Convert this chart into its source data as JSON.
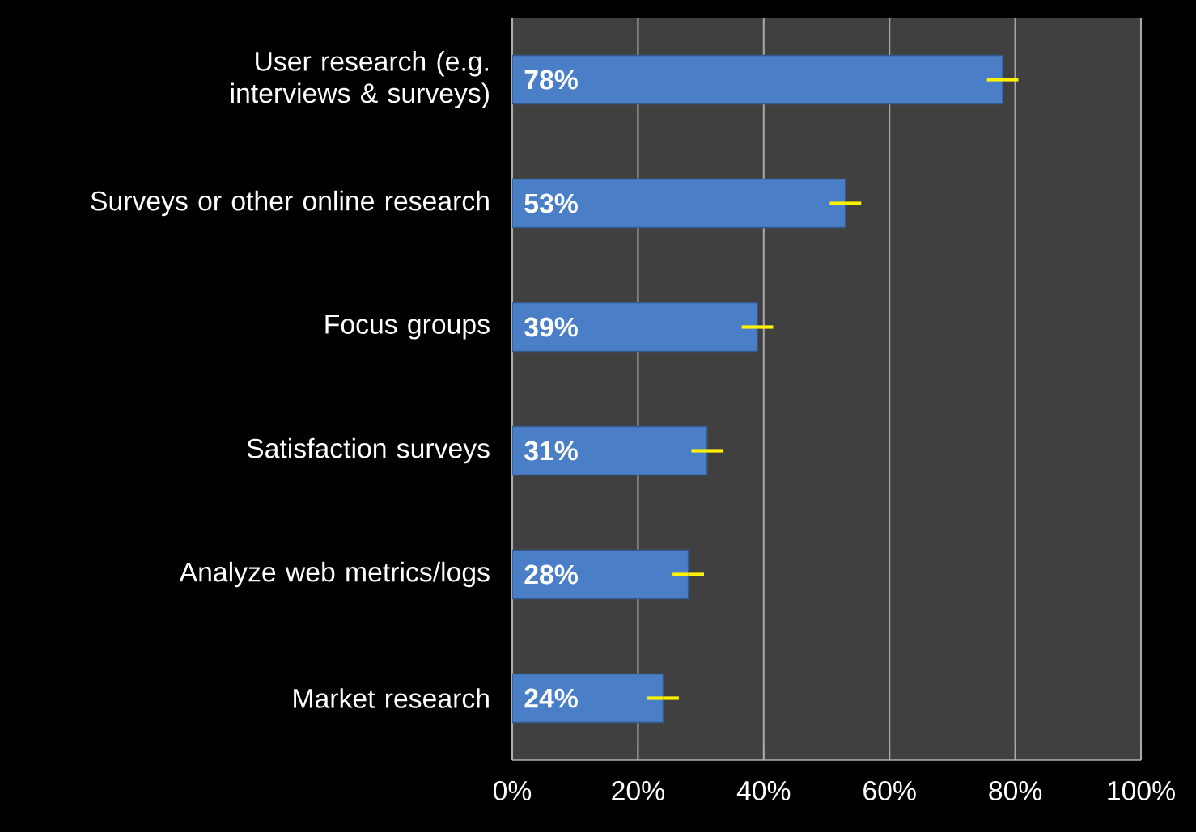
{
  "chart_data": {
    "type": "bar",
    "orientation": "horizontal",
    "categories": [
      "User research (e.g. interviews & surveys)",
      "Surveys or other online research",
      "Focus groups",
      "Satisfaction surveys",
      "Analyze web metrics/logs",
      "Market research"
    ],
    "values": [
      78,
      53,
      39,
      31,
      28,
      24
    ],
    "value_labels": [
      "78%",
      "53%",
      "39%",
      "31%",
      "28%",
      "24%"
    ],
    "errors": [
      2.5,
      2.5,
      2.5,
      2.5,
      2.5,
      2.5
    ],
    "color": "#4a7fc8",
    "xlim": [
      0,
      100
    ],
    "xticks": [
      {
        "value": 0,
        "label": "0%"
      },
      {
        "value": 20,
        "label": "20%"
      },
      {
        "value": 40,
        "label": "40%"
      },
      {
        "value": 60,
        "label": "60%"
      },
      {
        "value": 80,
        "label": "80%"
      },
      {
        "value": 100,
        "label": "100%"
      }
    ],
    "grid": "x"
  }
}
